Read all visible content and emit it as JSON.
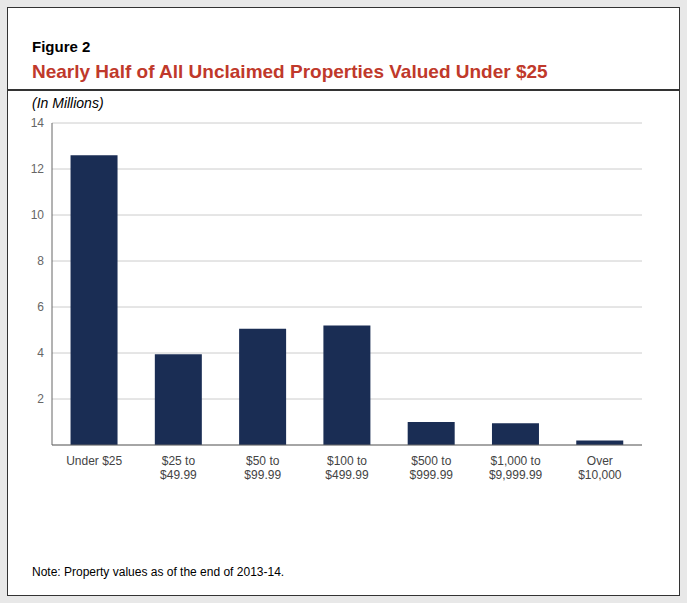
{
  "chart_data": {
    "type": "bar",
    "title": "Nearly Half of All Unclaimed Properties Valued Under $25",
    "subtitle": "(In Millions)",
    "annotations": [
      "Figure 2",
      "Note: Property values as of the end of 2013-14."
    ],
    "categories": [
      "Under $25",
      "$25 to\n$49.99",
      "$50 to\n$99.99",
      "$100 to\n$499.99",
      "$500 to\n$999.99",
      "$1,000 to\n$9,999.99",
      "Over\n$10,000"
    ],
    "values": [
      12.6,
      3.95,
      5.05,
      5.2,
      1.0,
      0.95,
      0.2
    ],
    "color": "#1a2d54",
    "ylim": [
      0,
      14
    ],
    "yticks": [
      2,
      4,
      6,
      8,
      10,
      12,
      14
    ],
    "grid": true
  }
}
